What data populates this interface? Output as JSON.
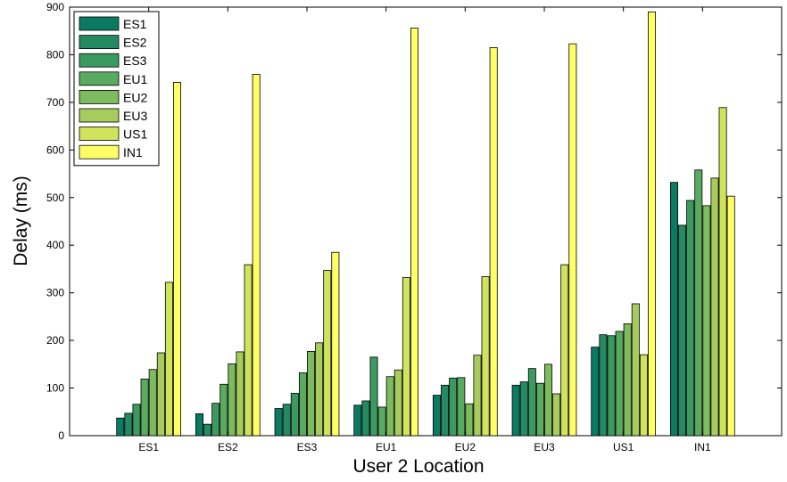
{
  "chart_data": {
    "type": "bar",
    "xlabel": "User 2 Location",
    "ylabel": "Delay (ms)",
    "ylim": [
      0,
      900
    ],
    "yticks": [
      0,
      100,
      200,
      300,
      400,
      500,
      600,
      700,
      800,
      900
    ],
    "grid": false,
    "legend_position": "top-left",
    "categories": [
      "ES1",
      "ES2",
      "ES3",
      "EU1",
      "EU2",
      "EU3",
      "US1",
      "IN1"
    ],
    "series": [
      {
        "name": "ES1",
        "color": "#0b7a62",
        "values": [
          37,
          46,
          57,
          64,
          85,
          106,
          186,
          532
        ]
      },
      {
        "name": "ES2",
        "color": "#238a61",
        "values": [
          47,
          24,
          66,
          73,
          106,
          113,
          212,
          442
        ]
      },
      {
        "name": "ES3",
        "color": "#3b9a60",
        "values": [
          66,
          68,
          89,
          165,
          121,
          141,
          210,
          494
        ]
      },
      {
        "name": "EU1",
        "color": "#5aaa60",
        "values": [
          119,
          108,
          132,
          60,
          122,
          110,
          219,
          558
        ]
      },
      {
        "name": "EU2",
        "color": "#7dbb5f",
        "values": [
          139,
          151,
          177,
          124,
          67,
          150,
          235,
          483
        ]
      },
      {
        "name": "EU3",
        "color": "#a6cc5e",
        "values": [
          174,
          176,
          195,
          138,
          169,
          88,
          277,
          541
        ]
      },
      {
        "name": "US1",
        "color": "#cfe35d",
        "values": [
          322,
          359,
          347,
          332,
          334,
          359,
          170,
          689
        ]
      },
      {
        "name": "IN1",
        "color": "#ffff66",
        "values": [
          742,
          759,
          385,
          856,
          815,
          823,
          890,
          503
        ]
      }
    ]
  }
}
